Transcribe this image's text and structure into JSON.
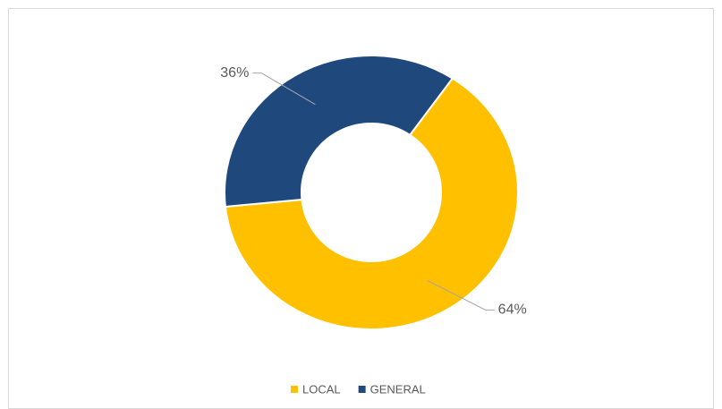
{
  "chart_data": {
    "type": "donut",
    "categories": [
      "LOCAL",
      "GENERAL"
    ],
    "values": [
      64,
      36
    ],
    "value_labels": [
      "64%",
      "36%"
    ],
    "colors": [
      "#ffc000",
      "#1f497d"
    ],
    "legend": "bottom"
  }
}
